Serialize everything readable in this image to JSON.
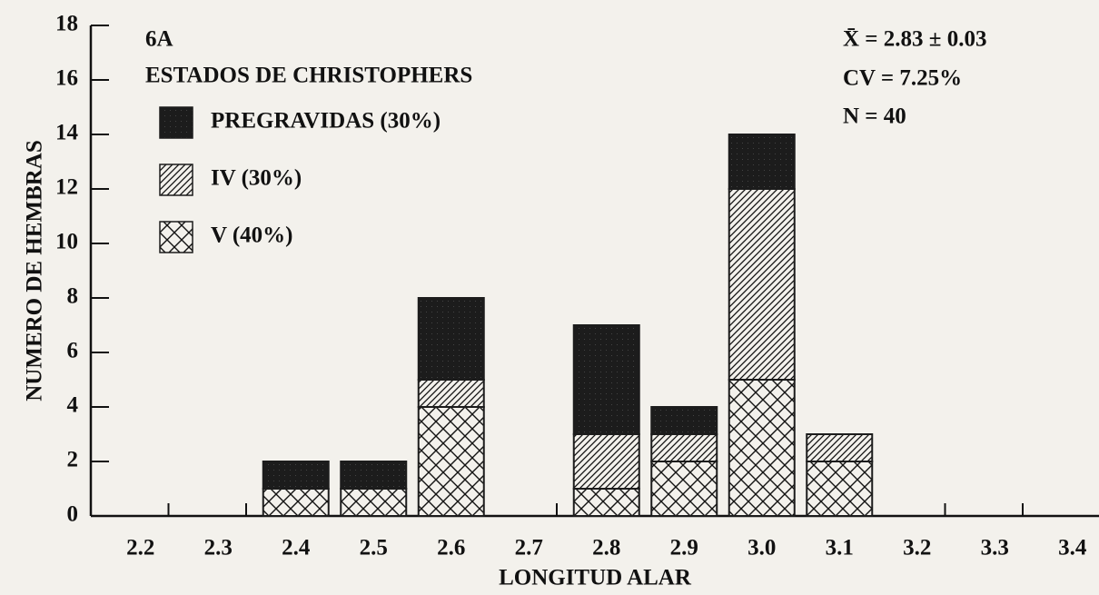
{
  "chart_data": {
    "type": "bar",
    "stacked": true,
    "categories": [
      "2.2",
      "2.3",
      "2.4",
      "2.5",
      "2.6",
      "2.7",
      "2.8",
      "2.9",
      "3.0",
      "3.1",
      "3.2",
      "3.3",
      "3.4"
    ],
    "series": [
      {
        "name": "PREGRAVIDAS (30%)",
        "color": "#1c1c1c",
        "values": [
          0,
          0,
          1,
          1,
          3,
          0,
          4,
          1,
          2,
          0,
          0,
          0,
          0
        ]
      },
      {
        "name": "IV (30%)",
        "color": "#1c1c1c",
        "values": [
          0,
          0,
          0,
          0,
          1,
          0,
          2,
          1,
          7,
          1,
          0,
          0,
          0
        ]
      },
      {
        "name": "V (40%)",
        "color": "#1c1c1c",
        "values": [
          0,
          0,
          1,
          1,
          4,
          0,
          1,
          2,
          5,
          2,
          0,
          0,
          0
        ]
      }
    ],
    "ylim": [
      0,
      18
    ],
    "yticks": [
      0,
      2,
      4,
      6,
      8,
      10,
      12,
      14,
      16,
      18
    ],
    "xlabel": "LONGITUD ALAR",
    "ylabel": "NUMERO DE HEMBRAS",
    "annotations": [
      "6A",
      "ESTADOS DE CHRISTOPHERS",
      "X̄ = 2.83 ± 0.03",
      "CV = 7.25%",
      "N = 40"
    ]
  }
}
